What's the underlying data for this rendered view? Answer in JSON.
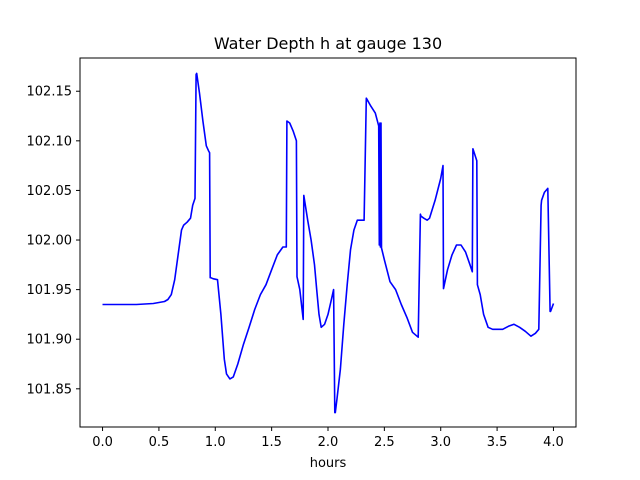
{
  "chart_data": {
    "type": "line",
    "title": "Water Depth h at gauge 130",
    "xlabel": "hours",
    "ylabel": "",
    "xlim": [
      -0.2,
      4.2
    ],
    "ylim": [
      101.8115,
      102.1835
    ],
    "x_ticks": [
      0.0,
      0.5,
      1.0,
      1.5,
      2.0,
      2.5,
      3.0,
      3.5,
      4.0
    ],
    "x_tick_labels": [
      "0.0",
      "0.5",
      "1.0",
      "1.5",
      "2.0",
      "2.5",
      "3.0",
      "3.5",
      "4.0"
    ],
    "y_ticks": [
      101.85,
      101.9,
      101.95,
      102.0,
      102.05,
      102.1,
      102.15
    ],
    "y_tick_labels": [
      "101.85",
      "101.90",
      "101.95",
      "102.00",
      "102.05",
      "102.10",
      "102.15"
    ],
    "grid": false,
    "legend": "none",
    "series_color": "#0000ff",
    "series": [
      {
        "x": [
          0.0,
          0.3,
          0.45,
          0.5,
          0.55,
          0.58,
          0.61,
          0.64,
          0.67,
          0.7,
          0.72,
          0.75,
          0.78,
          0.8,
          0.82,
          0.83,
          0.835,
          0.86,
          0.89,
          0.92,
          0.94,
          0.95,
          0.955,
          0.96,
          0.98,
          1.02,
          1.05,
          1.08,
          1.1,
          1.13,
          1.16,
          1.2,
          1.25,
          1.3,
          1.35,
          1.4,
          1.45,
          1.5,
          1.55,
          1.6,
          1.63,
          1.635,
          1.66,
          1.69,
          1.72,
          1.725,
          1.75,
          1.78,
          1.785,
          1.82,
          1.85,
          1.88,
          1.9,
          1.92,
          1.94,
          1.97,
          2.0,
          2.03,
          2.05,
          2.06,
          2.065,
          2.08,
          2.11,
          2.14,
          2.17,
          2.2,
          2.23,
          2.26,
          2.28,
          2.32,
          2.34,
          2.345,
          2.38,
          2.42,
          2.45,
          2.455,
          2.46,
          2.465,
          2.47,
          2.475,
          2.5,
          2.55,
          2.6,
          2.65,
          2.7,
          2.75,
          2.8,
          2.82,
          2.825,
          2.85,
          2.88,
          2.9,
          2.95,
          3.0,
          3.02,
          3.025,
          3.06,
          3.1,
          3.14,
          3.18,
          3.22,
          3.26,
          3.28,
          3.285,
          3.32,
          3.325,
          3.35,
          3.38,
          3.42,
          3.46,
          3.5,
          3.55,
          3.6,
          3.65,
          3.7,
          3.75,
          3.8,
          3.84,
          3.87,
          3.89,
          3.895,
          3.92,
          3.95,
          3.97,
          3.975,
          4.0
        ],
        "y": [
          101.935,
          101.935,
          101.936,
          101.937,
          101.938,
          101.94,
          101.945,
          101.96,
          101.985,
          102.01,
          102.015,
          102.018,
          102.022,
          102.035,
          102.042,
          102.167,
          102.168,
          102.148,
          102.12,
          102.095,
          102.09,
          102.088,
          101.962,
          101.962,
          101.961,
          101.96,
          101.925,
          101.88,
          101.865,
          101.86,
          101.862,
          101.875,
          101.895,
          101.912,
          101.93,
          101.945,
          101.955,
          101.97,
          101.985,
          101.993,
          101.993,
          102.12,
          102.118,
          102.11,
          102.1,
          101.963,
          101.95,
          101.92,
          102.045,
          102.02,
          102.0,
          101.975,
          101.95,
          101.925,
          101.912,
          101.915,
          101.925,
          101.94,
          101.95,
          101.826,
          101.826,
          101.84,
          101.87,
          101.915,
          101.955,
          101.99,
          102.01,
          102.02,
          102.02,
          102.02,
          102.143,
          102.142,
          102.135,
          102.128,
          102.115,
          101.995,
          102.118,
          101.993,
          102.118,
          101.992,
          101.98,
          101.958,
          101.95,
          101.935,
          101.922,
          101.907,
          101.902,
          102.026,
          102.024,
          102.022,
          102.02,
          102.022,
          102.04,
          102.062,
          102.075,
          101.951,
          101.97,
          101.985,
          101.995,
          101.995,
          101.988,
          101.975,
          101.968,
          102.092,
          102.08,
          101.955,
          101.945,
          101.925,
          101.912,
          101.91,
          101.91,
          101.91,
          101.913,
          101.915,
          101.912,
          101.908,
          101.903,
          101.906,
          101.91,
          102.035,
          102.04,
          102.048,
          102.052,
          101.928,
          101.928,
          101.936
        ]
      }
    ]
  }
}
